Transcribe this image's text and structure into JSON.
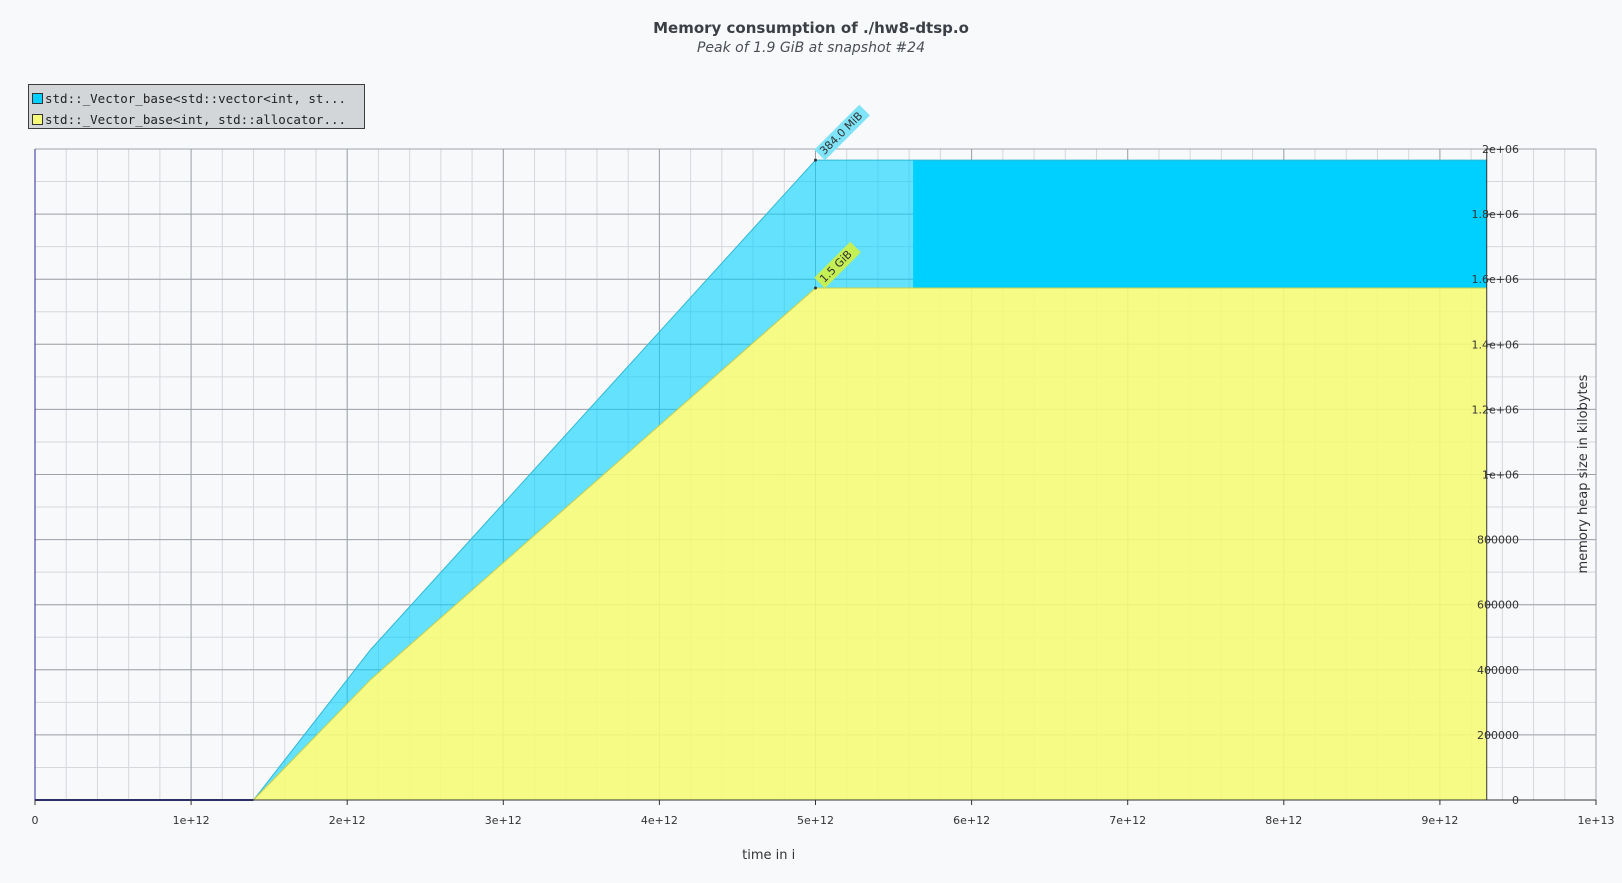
{
  "chart_data": {
    "type": "area",
    "title": "Memory consumption of ./hw8-dtsp.o",
    "subtitle": "Peak of 1.9 GiB at snapshot #24",
    "xlabel": "time in i",
    "ylabel": "memory heap size in kilobytes",
    "xlim": [
      0,
      10000000000000.0
    ],
    "ylim": [
      0,
      2000000
    ],
    "x_ticks": [
      "0",
      "1e+12",
      "2e+12",
      "3e+12",
      "4e+12",
      "5e+12",
      "6e+12",
      "7e+12",
      "8e+12",
      "9e+12",
      "1e+13"
    ],
    "y_ticks": [
      "0",
      "200000",
      "400000",
      "600000",
      "800000",
      "1e+06",
      "1.2e+06",
      "1.4e+06",
      "1.6e+06",
      "1.8e+06",
      "2e+06"
    ],
    "grid": true,
    "legend_position": "top-left",
    "series": [
      {
        "name": "std::_Vector_base<int, std::allocator...",
        "color": "#f5fb78",
        "x": [
          0,
          1400000000000.0,
          2150000000000.0,
          5000000000000.0,
          9300000000000.0
        ],
        "values": [
          0,
          0,
          370000,
          1573000,
          1573000
        ]
      },
      {
        "name": "std::_Vector_base<std::vector<int, st...",
        "color": "#00d0ff",
        "x": [
          0,
          1400000000000.0,
          2150000000000.0,
          5000000000000.0,
          9300000000000.0
        ],
        "values": [
          0,
          0,
          92000,
          393000,
          393000
        ]
      }
    ],
    "annotations": [
      {
        "text": "384.0 MiB",
        "x": 5000000000000.0,
        "y": 1966000,
        "color": "#80e4f8"
      },
      {
        "text": "1.5 GiB",
        "x": 5000000000000.0,
        "y": 1573000,
        "color": "#c4ef55"
      }
    ]
  }
}
